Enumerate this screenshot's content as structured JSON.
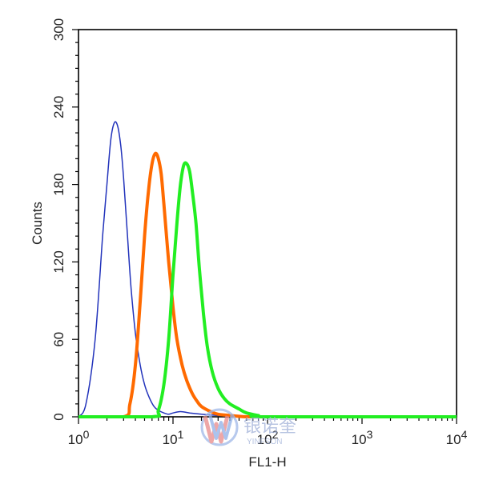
{
  "chart_data": {
    "type": "line",
    "title": "",
    "xlabel": "FL1-H",
    "ylabel": "Counts",
    "x_scale": "log",
    "xlim": [
      1,
      10000
    ],
    "ylim": [
      0,
      300
    ],
    "x_ticks": [
      {
        "base": "10",
        "exp": "0"
      },
      {
        "base": "10",
        "exp": "1"
      },
      {
        "base": "10",
        "exp": "2"
      },
      {
        "base": "10",
        "exp": "3"
      },
      {
        "base": "10",
        "exp": "4"
      }
    ],
    "y_ticks": [
      "0",
      "60",
      "120",
      "180",
      "240",
      "300"
    ],
    "grid": false,
    "series": [
      {
        "color": "#2233bb",
        "x": [
          1.0,
          1.2,
          1.5,
          1.8,
          2.0,
          2.2,
          2.4,
          2.6,
          2.8,
          3.0,
          3.3,
          3.6,
          4.0,
          4.5,
          5.0,
          5.6,
          6.3,
          7.0,
          8.0,
          9.0,
          10.0,
          12.0,
          15.0,
          20.0,
          30.0,
          50.0,
          100.0
        ],
        "y": [
          0,
          10,
          60,
          140,
          180,
          215,
          228,
          225,
          210,
          185,
          140,
          100,
          65,
          40,
          25,
          15,
          8,
          5,
          3,
          2,
          3,
          4,
          3,
          2,
          1,
          0,
          0
        ]
      },
      {
        "color": "#ff6a00",
        "x": [
          1.0,
          3.0,
          3.5,
          4.0,
          4.5,
          5.0,
          5.5,
          6.0,
          6.5,
          7.0,
          7.5,
          8.0,
          9.0,
          10.0,
          11.0,
          12.5,
          14.0,
          16.0,
          18.0,
          20.0,
          25.0,
          30.0,
          40.0,
          60.0,
          100.0,
          10000.0
        ],
        "y": [
          0,
          0,
          10,
          40,
          90,
          140,
          175,
          196,
          204,
          200,
          188,
          165,
          120,
          85,
          60,
          40,
          28,
          18,
          12,
          8,
          4,
          2,
          1,
          0,
          0,
          0
        ]
      },
      {
        "color": "#22ee22",
        "x": [
          1.0,
          6.0,
          7.0,
          8.0,
          9.0,
          10.0,
          11.0,
          12.0,
          13.0,
          14.0,
          15.0,
          16.0,
          17.5,
          19.0,
          21.0,
          23.0,
          26.0,
          30.0,
          35.0,
          40.0,
          50.0,
          60.0,
          80.0,
          100.0,
          10000.0
        ],
        "y": [
          0,
          0,
          5,
          25,
          60,
          110,
          150,
          180,
          195,
          196,
          190,
          175,
          150,
          115,
          80,
          55,
          35,
          22,
          14,
          10,
          6,
          3,
          1,
          0,
          0
        ]
      }
    ]
  },
  "watermark": {
    "brand_text": "银诺奎",
    "latin_text": "YINFSON"
  }
}
